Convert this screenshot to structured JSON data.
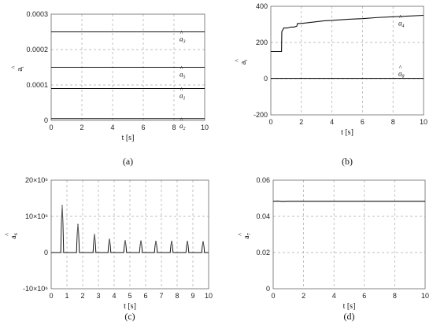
{
  "panels": [
    {
      "label": "(a)",
      "xlabel": "t [s]",
      "ylabel": "a",
      "ylabel_sub": "i"
    },
    {
      "label": "(b)",
      "xlabel": "t [s]",
      "ylabel": "a",
      "ylabel_sub": "i"
    },
    {
      "label": "(c)",
      "xlabel": "t [s]",
      "ylabel": "a",
      "ylabel_sub": "6"
    },
    {
      "label": "(d)",
      "xlabel": "t [s]",
      "ylabel": "a",
      "ylabel_sub": "7"
    }
  ],
  "chart_data": [
    {
      "type": "line",
      "xlabel": "t [s]",
      "ylabel": "â_i",
      "xlim": [
        0,
        10
      ],
      "ylim": [
        0,
        0.0003
      ],
      "x_ticks": [
        0,
        2,
        4,
        6,
        8,
        10
      ],
      "y_ticks": [
        "0",
        "0.0001",
        "0.0002",
        "0.0003"
      ],
      "grid": true,
      "series": [
        {
          "name": "â3",
          "sub": "3",
          "x": [
            0,
            10
          ],
          "values": [
            0.00025,
            0.00025
          ]
        },
        {
          "name": "â5",
          "sub": "5",
          "x": [
            0,
            10
          ],
          "values": [
            0.00015,
            0.00015
          ]
        },
        {
          "name": "â1",
          "sub": "1",
          "x": [
            0,
            10
          ],
          "values": [
            9e-05,
            9e-05
          ]
        },
        {
          "name": "â2",
          "sub": "2",
          "x": [
            0,
            10
          ],
          "values": [
            5e-06,
            5e-06
          ]
        }
      ]
    },
    {
      "type": "line",
      "xlabel": "t [s]",
      "ylabel": "â_i",
      "xlim": [
        0,
        10
      ],
      "ylim": [
        -200,
        400
      ],
      "x_ticks": [
        0,
        2,
        4,
        6,
        8,
        10
      ],
      "y_ticks": [
        "-200",
        "0",
        "200",
        "400"
      ],
      "grid": true,
      "series": [
        {
          "name": "â4",
          "sub": "4",
          "x": [
            0,
            0.7,
            0.72,
            0.85,
            1.1,
            1.3,
            1.5,
            1.7,
            1.75,
            2,
            2.5,
            3,
            3.5,
            4,
            5,
            6,
            7,
            8,
            9,
            10
          ],
          "values": [
            150,
            150,
            260,
            280,
            280,
            285,
            285,
            290,
            305,
            305,
            310,
            315,
            320,
            322,
            328,
            332,
            338,
            342,
            346,
            350
          ]
        },
        {
          "name": "â8",
          "sub": "8",
          "x": [
            0,
            10
          ],
          "values": [
            2,
            2
          ]
        }
      ]
    },
    {
      "type": "line",
      "xlabel": "t [s]",
      "ylabel": "â_6",
      "xlim": [
        0,
        10
      ],
      "ylim": [
        -10000000,
        20000000
      ],
      "x_ticks": [
        0,
        1,
        2,
        3,
        4,
        5,
        6,
        7,
        8,
        9,
        10
      ],
      "y_ticks": [
        "-10×10⁶",
        "0",
        "10×10⁶",
        "20×10⁶"
      ],
      "grid": true,
      "series": [
        {
          "name": "â6",
          "peaks_t": [
            0.7,
            1.7,
            2.75,
            3.7,
            4.7,
            5.7,
            6.65,
            7.65,
            8.65,
            9.65
          ],
          "peaks_v": [
            13000000,
            7800000,
            5000000,
            3700000,
            3300000,
            3200000,
            3100000,
            3100000,
            3100000,
            3000000
          ],
          "baseline": 0
        }
      ]
    },
    {
      "type": "line",
      "xlabel": "t [s]",
      "ylabel": "â_7",
      "xlim": [
        0,
        10
      ],
      "ylim": [
        0,
        0.06
      ],
      "x_ticks": [
        0,
        2,
        4,
        6,
        8,
        10
      ],
      "y_ticks": [
        "0",
        "0.02",
        "0.04",
        "0.06"
      ],
      "grid": true,
      "series": [
        {
          "name": "â7",
          "x": [
            0,
            0.3,
            0.6,
            1,
            10
          ],
          "values": [
            0.0483,
            0.0484,
            0.0482,
            0.0483,
            0.0483
          ]
        }
      ]
    }
  ]
}
